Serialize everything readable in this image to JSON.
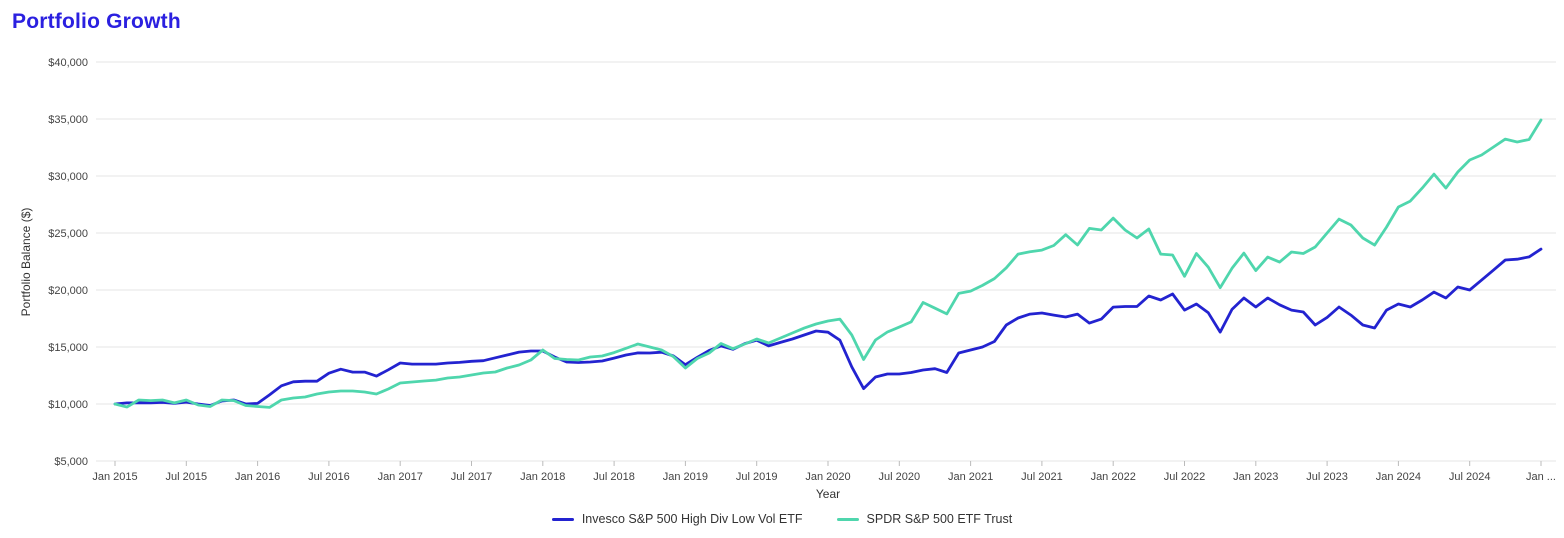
{
  "title": "Portfolio Growth",
  "colors": {
    "title": "#2B20E0",
    "series1": "#2323D0",
    "series2": "#4FD6AD",
    "gridline": "#E6E6E6",
    "tick_text": "#444444",
    "axis_text": "#333333",
    "background": "#FFFFFF"
  },
  "chart_data": {
    "type": "line",
    "title": "Portfolio Growth",
    "xlabel": "Year",
    "ylabel": "Portfolio Balance ($)",
    "ylim": [
      5000,
      40000
    ],
    "grid": "horizontal-only",
    "legend_position": "bottom-center",
    "y_ticks": [
      {
        "value": 40000,
        "label": "$40,000"
      },
      {
        "value": 35000,
        "label": "$35,000"
      },
      {
        "value": 30000,
        "label": "$30,000"
      },
      {
        "value": 25000,
        "label": "$25,000"
      },
      {
        "value": 20000,
        "label": "$20,000"
      },
      {
        "value": 15000,
        "label": "$15,000"
      },
      {
        "value": 10000,
        "label": "$10,000"
      },
      {
        "value": 5000,
        "label": "$5,000"
      }
    ],
    "x_tick_labels": [
      "Jan 2015",
      "Jul 2015",
      "Jan 2016",
      "Jul 2016",
      "Jan 2017",
      "Jul 2017",
      "Jan 2018",
      "Jul 2018",
      "Jan 2019",
      "Jul 2019",
      "Jan 2020",
      "Jul 2020",
      "Jan 2021",
      "Jul 2021",
      "Jan 2022",
      "Jul 2022",
      "Jan 2023",
      "Jul 2023",
      "Jan 2024",
      "Jul 2024",
      "Jan ..."
    ],
    "x_tick_every_n_points": 6,
    "x_unit": "month",
    "x_range_note": "monthly points Jan 2015 through Jan 2025",
    "series": [
      {
        "name": "Invesco S&P 500 High Div Low Vol ETF",
        "color": "#2323D0",
        "values": [
          10000,
          10100,
          10100,
          10100,
          10150,
          10050,
          10170,
          10000,
          9870,
          10260,
          10350,
          10000,
          10050,
          10800,
          11600,
          11950,
          12000,
          12000,
          12700,
          13050,
          12800,
          12800,
          12450,
          13000,
          13600,
          13500,
          13500,
          13500,
          13600,
          13650,
          13750,
          13800,
          14050,
          14300,
          14550,
          14650,
          14650,
          14120,
          13680,
          13640,
          13680,
          13770,
          14030,
          14300,
          14480,
          14470,
          14540,
          14210,
          13450,
          14100,
          14700,
          15100,
          14800,
          15300,
          15600,
          15100,
          15400,
          15700,
          16050,
          16400,
          16300,
          15600,
          13250,
          11350,
          12370,
          12630,
          12630,
          12760,
          12980,
          13100,
          12760,
          14470,
          14740,
          15000,
          15480,
          16930,
          17540,
          17890,
          17980,
          17800,
          17630,
          17890,
          17100,
          17450,
          18500,
          18550,
          18550,
          19470,
          19120,
          19650,
          18240,
          18770,
          18000,
          16310,
          18300,
          19300,
          18510,
          19300,
          18700,
          18240,
          18070,
          16930,
          17600,
          18510,
          17800,
          16930,
          16670,
          18240,
          18770,
          18510,
          19120,
          19820,
          19300,
          20260,
          20000,
          20870,
          21750,
          22630,
          22700,
          22900,
          23590
        ]
      },
      {
        "name": "SPDR S&P 500 ETF Trust",
        "color": "#4FD6AD",
        "values": [
          10000,
          9740,
          10350,
          10300,
          10350,
          10100,
          10350,
          9910,
          9780,
          10350,
          10300,
          9870,
          9780,
          9700,
          10350,
          10530,
          10610,
          10880,
          11050,
          11140,
          11140,
          11050,
          10880,
          11320,
          11840,
          11930,
          12020,
          12100,
          12280,
          12370,
          12540,
          12720,
          12810,
          13160,
          13420,
          13860,
          14740,
          13990,
          13900,
          13860,
          14120,
          14210,
          14510,
          14890,
          15260,
          15000,
          14740,
          14150,
          13160,
          13990,
          14470,
          15310,
          14850,
          15260,
          15700,
          15350,
          15790,
          16230,
          16660,
          17020,
          17280,
          17450,
          16050,
          13900,
          15610,
          16320,
          16750,
          17200,
          18900,
          18400,
          17900,
          19700,
          19900,
          20400,
          21000,
          21950,
          23150,
          23350,
          23500,
          23900,
          24850,
          23950,
          25400,
          25260,
          26310,
          25260,
          24560,
          25350,
          23150,
          23070,
          21200,
          23200,
          22000,
          20200,
          21900,
          23240,
          21700,
          22890,
          22450,
          23330,
          23200,
          23770,
          25000,
          26220,
          25700,
          24560,
          23940,
          25520,
          27280,
          27800,
          28940,
          30170,
          28940,
          30350,
          31400,
          31840,
          32540,
          33240,
          32980,
          33200,
          34910
        ]
      }
    ]
  },
  "legend": {
    "items": [
      {
        "label": "Invesco S&P 500 High Div Low Vol ETF",
        "color": "#2323D0"
      },
      {
        "label": "SPDR S&P 500 ETF Trust",
        "color": "#4FD6AD"
      }
    ]
  }
}
